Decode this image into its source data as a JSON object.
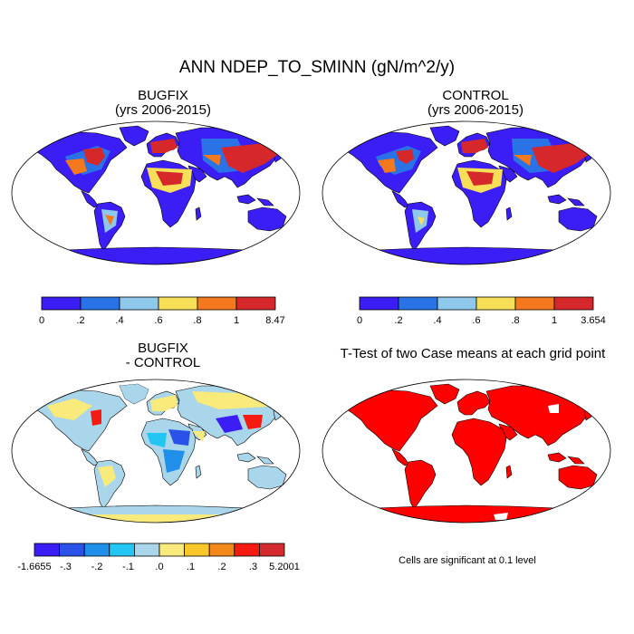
{
  "figure": {
    "title": "ANN NDEP_TO_SMINN (gN/m^2/y)",
    "note": "Cells are significant at 0.1 level"
  },
  "panels": [
    {
      "title1": "BUGFIX",
      "title2": "(yrs 2006-2015)"
    },
    {
      "title1": "CONTROL",
      "title2": "(yrs 2006-2015)"
    },
    {
      "title1": "BUGFIX",
      "title2": "- CONTROL"
    },
    {
      "title1": "T-Test of two Case means at each grid point",
      "title2": ""
    }
  ],
  "chart_data": [
    {
      "type": "heatmap",
      "name": "BUGFIX",
      "colorbar": {
        "ticks": [
          "0",
          ".2",
          ".4",
          ".6",
          ".8",
          "1",
          "8.47"
        ],
        "colors": [
          "#3b1df5",
          "#2a73e6",
          "#8ec8ea",
          "#f7df57",
          "#f4781d",
          "#d6282b"
        ]
      }
    },
    {
      "type": "heatmap",
      "name": "CONTROL",
      "colorbar": {
        "ticks": [
          "0",
          ".2",
          ".4",
          ".6",
          ".8",
          "1",
          "3.654"
        ],
        "colors": [
          "#3b1df5",
          "#2a73e6",
          "#8ec8ea",
          "#f7df57",
          "#f4781d",
          "#d6282b"
        ]
      }
    },
    {
      "type": "heatmap",
      "name": "BUGFIX - CONTROL",
      "colorbar": {
        "ticks": [
          "-1.6655",
          "-.3",
          "-.2",
          "-.1",
          ".0",
          ".1",
          ".2",
          ".3",
          "5.2001"
        ],
        "colors": [
          "#3b1df5",
          "#2a52e8",
          "#1f8fe9",
          "#23c6f2",
          "#a9d6ea",
          "#f8ea7b",
          "#f7c72b",
          "#f2881a",
          "#f51b12",
          "#d22a2e"
        ]
      }
    },
    {
      "type": "heatmap",
      "name": "T-Test",
      "significant_color": "#ff0000"
    }
  ]
}
